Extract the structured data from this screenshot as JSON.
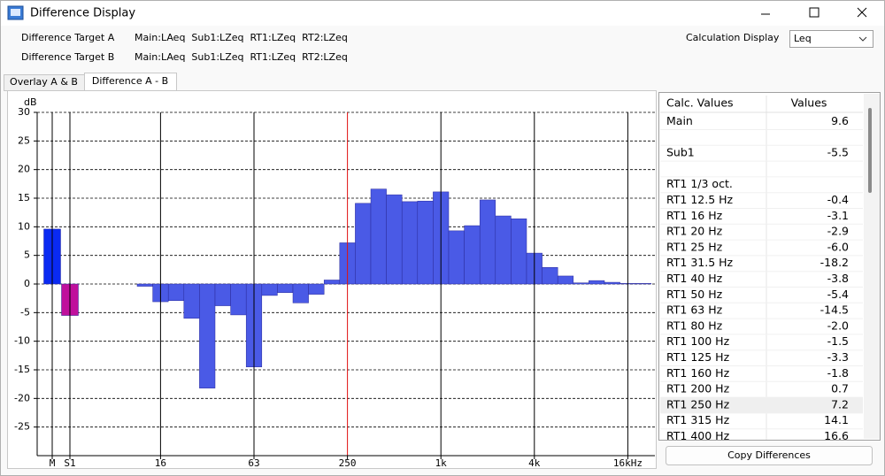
{
  "window": {
    "title": "Difference Display"
  },
  "targets": [
    {
      "label": "Difference Target A",
      "value": "Main:LAeq  Sub1:LZeq  RT1:LZeq  RT2:LZeq"
    },
    {
      "label": "Difference Target B",
      "value": "Main:LAeq  Sub1:LZeq  RT1:LZeq  RT2:LZeq"
    }
  ],
  "calculation": {
    "label": "Calculation Display",
    "selected": "Leq"
  },
  "tabs": [
    "Overlay A & B",
    "Difference A - B"
  ],
  "active_tab": 1,
  "chart": {
    "type": "bar",
    "ylabel": "dB",
    "categories": [
      "M",
      "S1",
      null,
      "16",
      null,
      null,
      null,
      null,
      null,
      "63",
      null,
      null,
      null,
      null,
      null,
      "250",
      null,
      null,
      null,
      null,
      null,
      "1k",
      null,
      null,
      null,
      null,
      null,
      "4k",
      null,
      null,
      null,
      null,
      null,
      "16kHz",
      null
    ],
    "values": [
      9.6,
      -5.5,
      -0.4,
      -3.1,
      -2.9,
      -6.0,
      -18.2,
      -3.8,
      -5.4,
      -14.5,
      -2.0,
      -1.5,
      -3.3,
      -1.8,
      0.7,
      7.2,
      14.1,
      16.6,
      15.6,
      14.4,
      14.5,
      16.1,
      9.3,
      10.2,
      14.7,
      11.9,
      11.4,
      5.4,
      2.9,
      1.4,
      0.2,
      0.6,
      0.3,
      0.1,
      0.1
    ],
    "colors": [
      "#0a2af2",
      "#c0109c",
      "#4a5ae6",
      "#4a5ae6",
      "#4a5ae6",
      "#4a5ae6",
      "#4a5ae6",
      "#4a5ae6",
      "#4a5ae6",
      "#4a5ae6",
      "#4a5ae6",
      "#4a5ae6",
      "#4a5ae6",
      "#4a5ae6",
      "#4a5ae6",
      "#4a5ae6",
      "#4a5ae6",
      "#4a5ae6",
      "#4a5ae6",
      "#4a5ae6",
      "#4a5ae6",
      "#4a5ae6",
      "#4a5ae6",
      "#4a5ae6",
      "#4a5ae6",
      "#4a5ae6",
      "#4a5ae6",
      "#4a5ae6",
      "#4a5ae6",
      "#4a5ae6",
      "#4a5ae6",
      "#4a5ae6",
      "#4a5ae6",
      "#4a5ae6",
      "#4a5ae6"
    ],
    "ylim": [
      -30,
      30
    ],
    "yticks": [
      30,
      25,
      20,
      15,
      10,
      5,
      0,
      -5,
      -10,
      -15,
      -20,
      -25
    ],
    "grid": true,
    "cursor_index": 15,
    "cursor_color": "#e01010"
  },
  "table": {
    "columns": [
      "Calc. Values",
      "Values"
    ],
    "rows": [
      {
        "label": "Main",
        "value": "9.6"
      },
      {},
      {
        "label": "Sub1",
        "value": "-5.5"
      },
      {},
      {
        "label": "RT1 1/3 oct."
      },
      {
        "label": "RT1 12.5 Hz",
        "value": "-0.4"
      },
      {
        "label": "RT1 16 Hz",
        "value": "-3.1"
      },
      {
        "label": "RT1 20 Hz",
        "value": "-2.9"
      },
      {
        "label": "RT1 25 Hz",
        "value": "-6.0"
      },
      {
        "label": "RT1 31.5 Hz",
        "value": "-18.2"
      },
      {
        "label": "RT1 40 Hz",
        "value": "-3.8"
      },
      {
        "label": "RT1 50 Hz",
        "value": "-5.4"
      },
      {
        "label": "RT1 63 Hz",
        "value": "-14.5"
      },
      {
        "label": "RT1 80 Hz",
        "value": "-2.0"
      },
      {
        "label": "RT1 100 Hz",
        "value": "-1.5"
      },
      {
        "label": "RT1 125 Hz",
        "value": "-3.3"
      },
      {
        "label": "RT1 160 Hz",
        "value": "-1.8"
      },
      {
        "label": "RT1 200 Hz",
        "value": "0.7"
      },
      {
        "label": "RT1 250 Hz",
        "value": "7.2"
      },
      {
        "label": "RT1 315 Hz",
        "value": "14.1"
      },
      {
        "label": "RT1 400 Hz",
        "value": "16.6"
      }
    ],
    "selected_row": 18
  },
  "button": "Copy Differences"
}
